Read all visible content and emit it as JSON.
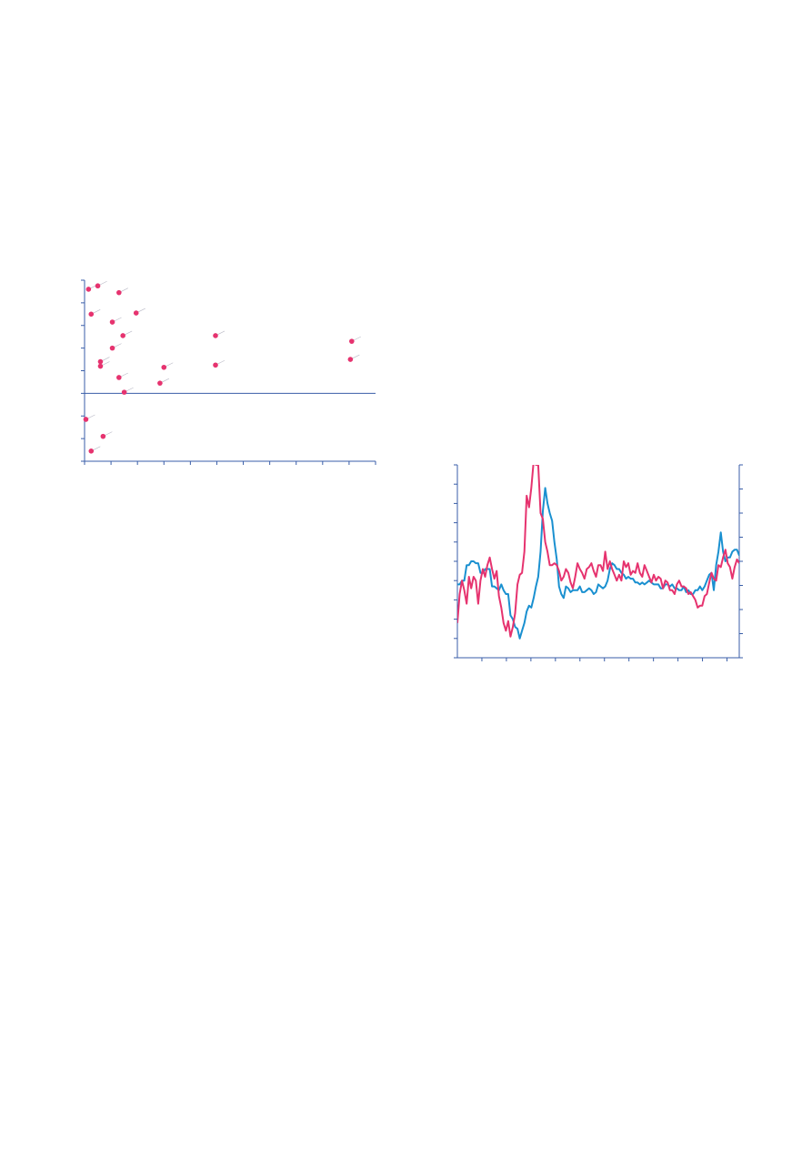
{
  "colors": {
    "axis": "#3a5ea8",
    "pink": "#e6336f",
    "blue": "#1a90d0",
    "leader": "#b9b9c6"
  },
  "chart_data": [
    {
      "type": "scatter",
      "xlim": [
        0,
        11
      ],
      "ylim": [
        -3,
        5
      ],
      "grid": false,
      "points": [
        {
          "x": 0.15,
          "y": 4.6
        },
        {
          "x": 0.5,
          "y": 4.75
        },
        {
          "x": 1.3,
          "y": 4.45
        },
        {
          "x": 0.25,
          "y": 3.5
        },
        {
          "x": 1.05,
          "y": 3.15
        },
        {
          "x": 1.95,
          "y": 3.55
        },
        {
          "x": 1.45,
          "y": 2.55
        },
        {
          "x": 1.05,
          "y": 2.0
        },
        {
          "x": 0.6,
          "y": 1.4
        },
        {
          "x": 0.6,
          "y": 1.2
        },
        {
          "x": 1.3,
          "y": 0.7
        },
        {
          "x": 1.5,
          "y": 0.05
        },
        {
          "x": 2.85,
          "y": 0.45
        },
        {
          "x": 3.0,
          "y": 1.15
        },
        {
          "x": 4.95,
          "y": 2.55
        },
        {
          "x": 4.95,
          "y": 1.25
        },
        {
          "x": 10.1,
          "y": 2.3
        },
        {
          "x": 10.05,
          "y": 1.5
        },
        {
          "x": 0.05,
          "y": -1.15
        },
        {
          "x": 0.7,
          "y": -1.9
        },
        {
          "x": 0.25,
          "y": -2.55
        }
      ]
    },
    {
      "type": "line",
      "xlim": [
        0,
        115
      ],
      "ylim": [
        0,
        100
      ],
      "grid": false,
      "series": [
        {
          "color": "#1a90d0",
          "values": [
            38,
            38,
            40,
            40,
            48,
            48,
            50,
            50,
            49,
            49,
            44,
            44,
            46,
            46,
            46,
            37,
            37,
            36,
            35,
            38,
            35,
            33,
            33,
            22,
            20,
            16,
            15,
            10,
            14,
            18,
            24,
            27,
            26,
            31,
            37,
            42,
            55,
            76,
            88,
            80,
            75,
            71,
            60,
            51,
            37,
            33,
            31,
            37,
            36,
            34,
            35,
            35,
            35,
            37,
            34,
            34,
            35,
            36,
            35,
            33,
            34,
            38,
            37,
            36,
            37,
            40,
            46,
            49,
            48,
            46,
            46,
            44,
            43,
            41,
            42,
            41,
            41,
            39,
            39,
            38,
            39,
            38,
            39,
            40,
            39,
            38,
            38,
            38,
            36,
            36,
            38,
            38,
            37,
            38,
            36,
            36,
            35,
            35,
            37,
            34,
            35,
            33,
            33,
            35,
            35,
            37,
            35,
            37,
            40,
            43,
            44,
            35,
            48,
            55,
            65,
            55,
            50,
            52,
            52,
            55,
            56,
            56,
            53
          ]
        },
        {
          "color": "#e6336f",
          "values": [
            18,
            33,
            40,
            35,
            28,
            42,
            36,
            42,
            40,
            28,
            40,
            46,
            42,
            48,
            52,
            46,
            41,
            45,
            32,
            26,
            18,
            14,
            19,
            11,
            16,
            23,
            38,
            43,
            44,
            55,
            84,
            78,
            88,
            102,
            100,
            100,
            75,
            72,
            60,
            55,
            48,
            48,
            49,
            48,
            45,
            40,
            42,
            46,
            44,
            39,
            36,
            42,
            49,
            46,
            44,
            41,
            46,
            47,
            49,
            45,
            42,
            48,
            48,
            45,
            55,
            46,
            50,
            46,
            43,
            40,
            43,
            40,
            50,
            47,
            49,
            43,
            45,
            44,
            49,
            44,
            42,
            48,
            45,
            42,
            39,
            43,
            40,
            42,
            41,
            36,
            40,
            39,
            35,
            35,
            33,
            38,
            40,
            37,
            37,
            36,
            33,
            34,
            32,
            30,
            26,
            27,
            27,
            32,
            33,
            39,
            44,
            41,
            40,
            48,
            47,
            52,
            56,
            49,
            47,
            41,
            47,
            51,
            49
          ]
        }
      ]
    }
  ]
}
